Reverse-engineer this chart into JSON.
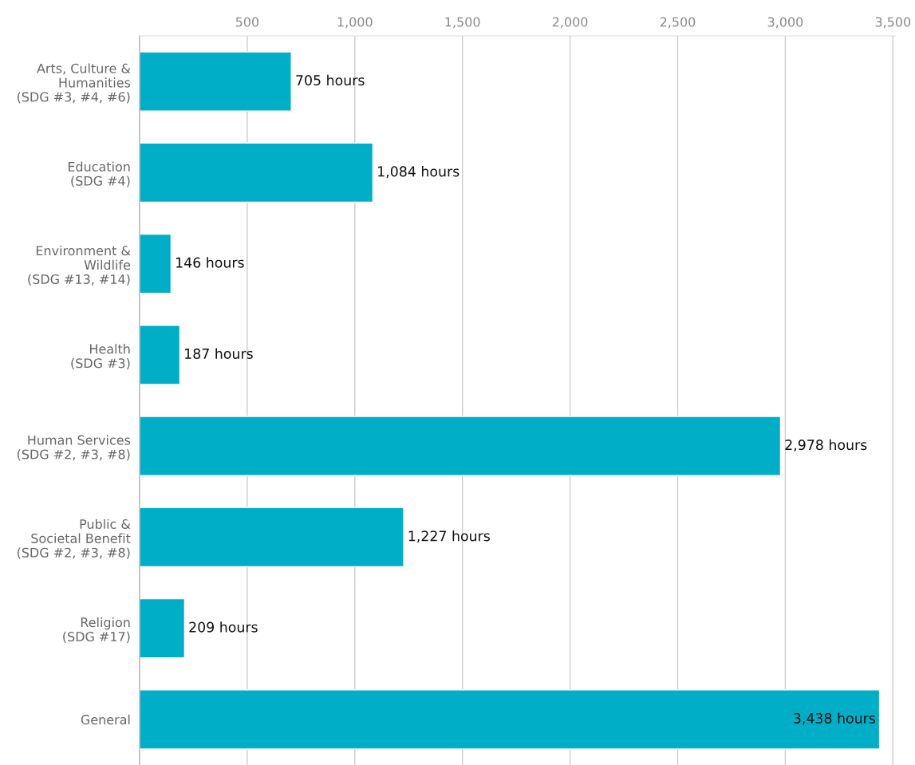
{
  "chart_data": {
    "type": "bar",
    "orientation": "horizontal",
    "categories": [
      "Arts, Culture &\nHumanities\n(SDG #3, #4, #6)",
      "Education\n(SDG #4)",
      "Environment &\nWildlife\n(SDG #13, #14)",
      "Health\n(SDG #3)",
      "Human Services\n(SDG #2, #3, #8)",
      "Public &\nSocietal Benefit\n(SDG #2, #3, #8)",
      "Religion\n(SDG #17)",
      "General"
    ],
    "values": [
      705,
      1084,
      146,
      187,
      2978,
      1227,
      209,
      3438
    ],
    "value_labels": [
      "705 hours",
      "1,084 hours",
      "146 hours",
      "187 hours",
      "2,978 hours",
      "1,227 hours",
      "209 hours",
      "3,438 hours"
    ],
    "color": "#00aec7",
    "xlim": [
      0,
      3510
    ],
    "xticks": [
      500,
      {
        "value": 1000,
        "label": "1,000"
      },
      {
        "value": 1500,
        "label": "1,500"
      },
      {
        "value": 2000,
        "label": "2,000"
      },
      {
        "value": 2500,
        "label": "2,500"
      },
      {
        "value": 3000,
        "label": "3,000"
      },
      {
        "value": 3500,
        "label": "3,500"
      }
    ],
    "grid": "x",
    "legend": false
  }
}
